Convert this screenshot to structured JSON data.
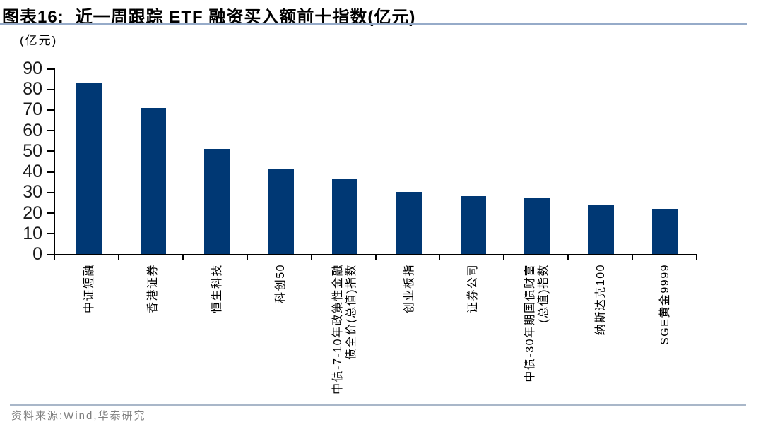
{
  "header": {
    "figure_label": "图表16:",
    "title": "近一周跟踪 ETF 融资买入额前十指数(亿元)"
  },
  "footer": {
    "source_note": "资料来源:Wind,华泰研究"
  },
  "chart_data": {
    "type": "bar",
    "title": "近一周跟踪 ETF 融资买入额前十指数(亿元)",
    "unit_label": "(亿元)",
    "categories": [
      "中证短融",
      "香港证券",
      "恒生科技",
      "科创50",
      "中债-7-10年政策性金融\n债全价(总值)指数",
      "创业板指",
      "证券公司",
      "中债-30年期国债财富\n(总值)指数",
      "纳斯达克100",
      "SGE黄金9999"
    ],
    "values": [
      83,
      71,
      51,
      41,
      36.5,
      30,
      28,
      27.5,
      24,
      22
    ],
    "xlabel": "",
    "ylabel": "(亿元)",
    "ylim": [
      0,
      90
    ],
    "ytick_step": 10,
    "grid": "off",
    "legend": "none",
    "bar_color": "#003874",
    "axis_color": "#000000",
    "source_text": "资料来源:Wind,华泰研究"
  }
}
